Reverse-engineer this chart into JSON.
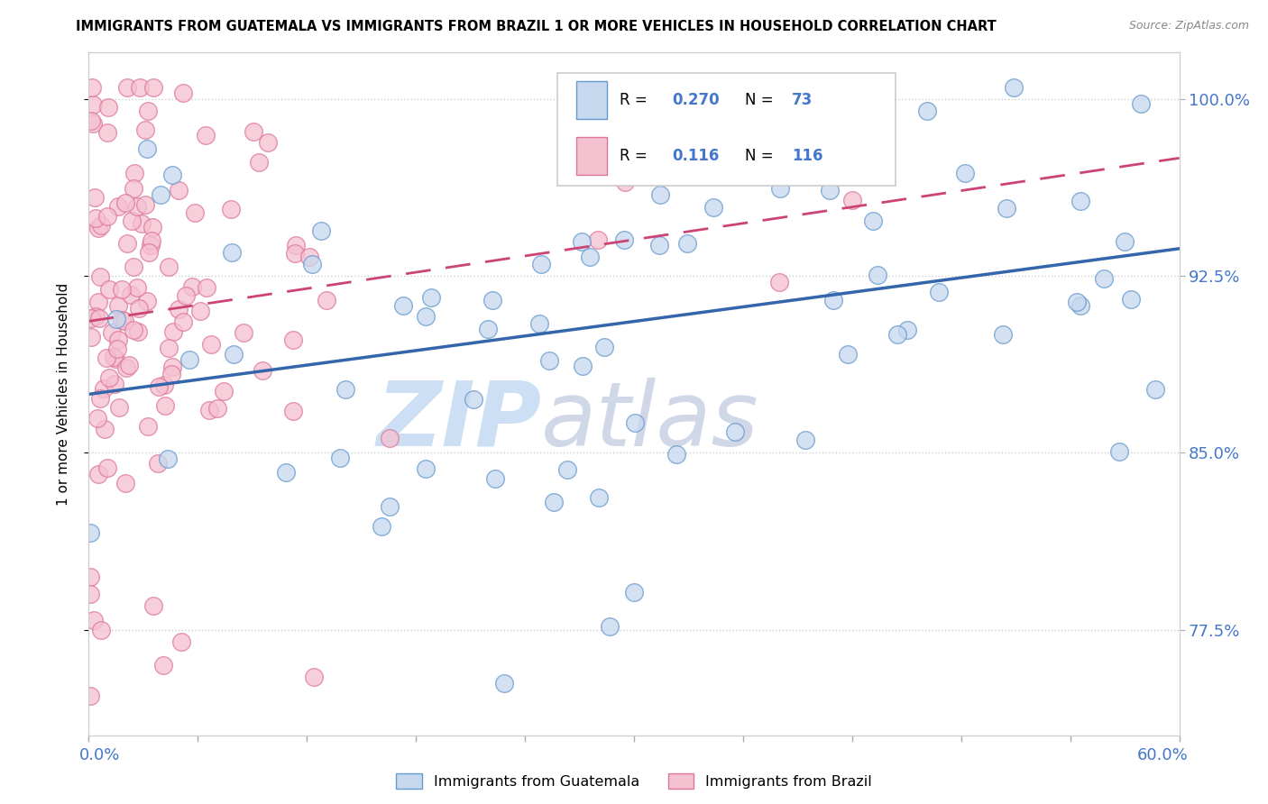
{
  "title": "IMMIGRANTS FROM GUATEMALA VS IMMIGRANTS FROM BRAZIL 1 OR MORE VEHICLES IN HOUSEHOLD CORRELATION CHART",
  "source": "Source: ZipAtlas.com",
  "ylabel_ticks": [
    77.5,
    85.0,
    92.5,
    100.0
  ],
  "xmin": 0.0,
  "xmax": 60.0,
  "ymin": 73.0,
  "ymax": 102.0,
  "R_guatemala": 0.27,
  "N_guatemala": 73,
  "R_brazil": 0.116,
  "N_brazil": 116,
  "color_guatemala_fill": "#c5d8ee",
  "color_guatemala_edge": "#6699cc",
  "color_brazil_fill": "#f5c0d0",
  "color_brazil_edge": "#dd7799",
  "color_guatemala_line": "#3366aa",
  "color_brazil_line": "#cc4477",
  "watermark_zip_color": "#ccdff5",
  "watermark_atlas_color": "#d0d8e8",
  "tick_label_color": "#4477cc",
  "ylabel": "1 or more Vehicles in Household"
}
